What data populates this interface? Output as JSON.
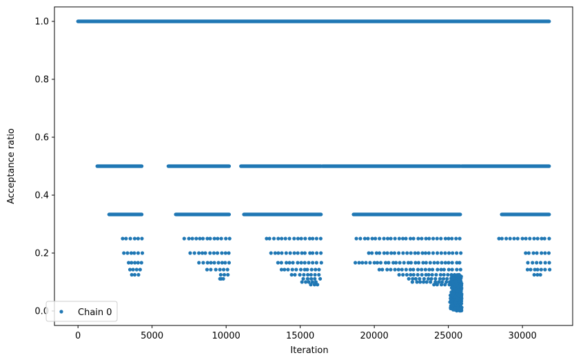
{
  "chart_data": {
    "type": "scatter",
    "title": "",
    "xlabel": "Iteration",
    "ylabel": "Acceptance ratio",
    "xlim": [
      -1590,
      33390
    ],
    "ylim": [
      -0.05,
      1.05
    ],
    "xticks": [
      0,
      5000,
      10000,
      15000,
      20000,
      25000,
      30000
    ],
    "xtick_labels": [
      "0",
      "5000",
      "10000",
      "15000",
      "20000",
      "25000",
      "30000"
    ],
    "yticks": [
      0.0,
      0.2,
      0.4,
      0.6,
      0.8,
      1.0
    ],
    "ytick_labels": [
      "0.0",
      "0.2",
      "0.4",
      "0.6",
      "0.8",
      "1.0"
    ],
    "grid": false,
    "legend_position": "bottom-left",
    "series": [
      {
        "name": "Chain 0",
        "color": "#1f77b4",
        "marker": "circle",
        "levels": [
          {
            "y": 1.0,
            "ranges": [
              [
                0,
                31800
              ]
            ]
          },
          {
            "y": 0.5,
            "ranges": [
              [
                1300,
                4300
              ],
              [
                6100,
                10200
              ],
              [
                11000,
                16400
              ],
              [
                16500,
                25800
              ],
              [
                25900,
                31800
              ]
            ]
          },
          {
            "y": 0.3333,
            "ranges": [
              [
                2100,
                4300
              ],
              [
                6600,
                10200
              ],
              [
                11200,
                16400
              ],
              [
                18600,
                25800
              ],
              [
                28600,
                31800
              ]
            ]
          },
          {
            "y": 0.25,
            "ranges": [
              [
                3000,
                4300
              ],
              [
                7200,
                10200
              ],
              [
                12700,
                16400
              ],
              [
                18800,
                25800
              ],
              [
                28400,
                31800
              ]
            ]
          },
          {
            "y": 0.2,
            "ranges": [
              [
                3100,
                4300
              ],
              [
                7600,
                10200
              ],
              [
                13000,
                16400
              ],
              [
                19600,
                25800
              ],
              [
                30200,
                31800
              ]
            ]
          },
          {
            "y": 0.1667,
            "ranges": [
              [
                3400,
                4300
              ],
              [
                8200,
                10200
              ],
              [
                13500,
                16400
              ],
              [
                18700,
                25800
              ],
              [
                30400,
                31800
              ]
            ]
          },
          {
            "y": 0.1429,
            "ranges": [
              [
                3500,
                4200
              ],
              [
                8700,
                10100
              ],
              [
                13700,
                16300
              ],
              [
                20300,
                25800
              ],
              [
                30300,
                31800
              ]
            ]
          },
          {
            "y": 0.125,
            "ranges": [
              [
                3600,
                4100
              ],
              [
                9600,
                10100
              ],
              [
                14400,
                16300
              ],
              [
                21700,
                25700
              ],
              [
                30800,
                31200
              ]
            ]
          },
          {
            "y": 0.1111,
            "ranges": [
              [
                9600,
                9800
              ],
              [
                15200,
                16300
              ],
              [
                22300,
                25700
              ]
            ]
          },
          {
            "y": 0.1,
            "ranges": [
              [
                15100,
                16100
              ],
              [
                22600,
                25800
              ]
            ]
          },
          {
            "y": 0.0909,
            "ranges": [
              [
                15700,
                16200
              ],
              [
                24000,
                25800
              ]
            ]
          }
        ],
        "dense_low_region": {
          "x_range": [
            25100,
            25900
          ],
          "y_range": [
            0.0,
            0.125
          ]
        }
      }
    ]
  }
}
